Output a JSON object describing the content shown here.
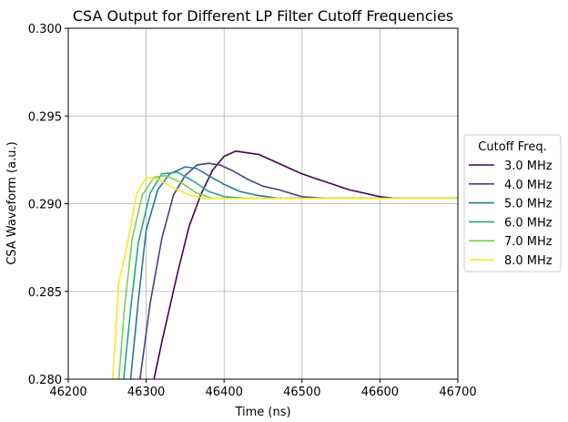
{
  "chart_data": {
    "type": "line",
    "title": "CSA Output for Different LP Filter Cutoff Frequencies",
    "xlabel": "Time (ns)",
    "ylabel": "CSA Waveform (a.u.)",
    "xlim": [
      46200,
      46700
    ],
    "ylim": [
      0.28,
      0.3
    ],
    "xticks": [
      "46200",
      "46300",
      "46400",
      "46500",
      "46600",
      "46700"
    ],
    "xtick_values": [
      46200,
      46300,
      46400,
      46500,
      46600,
      46700
    ],
    "yticks": [
      "0.280",
      "0.285",
      "0.290",
      "0.295",
      "0.300"
    ],
    "ytick_values": [
      0.28,
      0.285,
      0.29,
      0.295,
      0.3
    ],
    "grid": true,
    "legend": {
      "title": "Cutoff Freq.",
      "placement": "outside-right"
    },
    "series": [
      {
        "name": "3.0 MHz",
        "color": "#440154",
        "x": [
          46310,
          46320,
          46340,
          46355,
          46370,
          46385,
          46400,
          46415,
          46430,
          46445,
          46460,
          46480,
          46500,
          46520,
          46540,
          46560,
          46580,
          46600,
          46620,
          46700
        ],
        "y": [
          0.28,
          0.2821,
          0.286,
          0.2887,
          0.2905,
          0.2919,
          0.2927,
          0.293,
          0.2929,
          0.2928,
          0.2925,
          0.2921,
          0.2917,
          0.2914,
          0.2911,
          0.2908,
          0.2906,
          0.2904,
          0.2903,
          0.2903
        ]
      },
      {
        "name": "4.0 MHz",
        "color": "#414487",
        "x": [
          46292,
          46305,
          46320,
          46335,
          46350,
          46365,
          46380,
          46395,
          46410,
          46430,
          46450,
          46470,
          46500,
          46530,
          46700
        ],
        "y": [
          0.28,
          0.2843,
          0.288,
          0.2905,
          0.2916,
          0.2922,
          0.2923,
          0.2922,
          0.2919,
          0.2914,
          0.291,
          0.2908,
          0.2904,
          0.2903,
          0.2903
        ]
      },
      {
        "name": "5.0 MHz",
        "color": "#2a788e",
        "x": [
          46280,
          46290,
          46300,
          46315,
          46330,
          46350,
          46365,
          46380,
          46400,
          46420,
          46440,
          46470,
          46700
        ],
        "y": [
          0.28,
          0.2845,
          0.2885,
          0.2908,
          0.2917,
          0.2921,
          0.292,
          0.2916,
          0.2911,
          0.2907,
          0.2905,
          0.2903,
          0.2903
        ]
      },
      {
        "name": "6.0 MHz",
        "color": "#22a884",
        "x": [
          46271,
          46280,
          46290,
          46305,
          46320,
          46340,
          46360,
          46380,
          46400,
          46430,
          46700
        ],
        "y": [
          0.28,
          0.284,
          0.2878,
          0.2906,
          0.2917,
          0.2918,
          0.2913,
          0.2907,
          0.2904,
          0.2903,
          0.2903
        ]
      },
      {
        "name": "7.0 MHz",
        "color": "#7ad151",
        "x": [
          46265,
          46272,
          46282,
          46295,
          46310,
          46325,
          46345,
          46365,
          46385,
          46700
        ],
        "y": [
          0.28,
          0.284,
          0.288,
          0.2905,
          0.2915,
          0.2916,
          0.2912,
          0.2906,
          0.2903,
          0.2903
        ]
      },
      {
        "name": "8.0 MHz",
        "color": "#fde725",
        "x": [
          46257,
          46265,
          46275,
          46288,
          46300,
          46315,
          46335,
          46355,
          46375,
          46700
        ],
        "y": [
          0.28,
          0.2855,
          0.2875,
          0.2906,
          0.2915,
          0.2914,
          0.2909,
          0.2905,
          0.2903,
          0.2903
        ]
      }
    ]
  }
}
